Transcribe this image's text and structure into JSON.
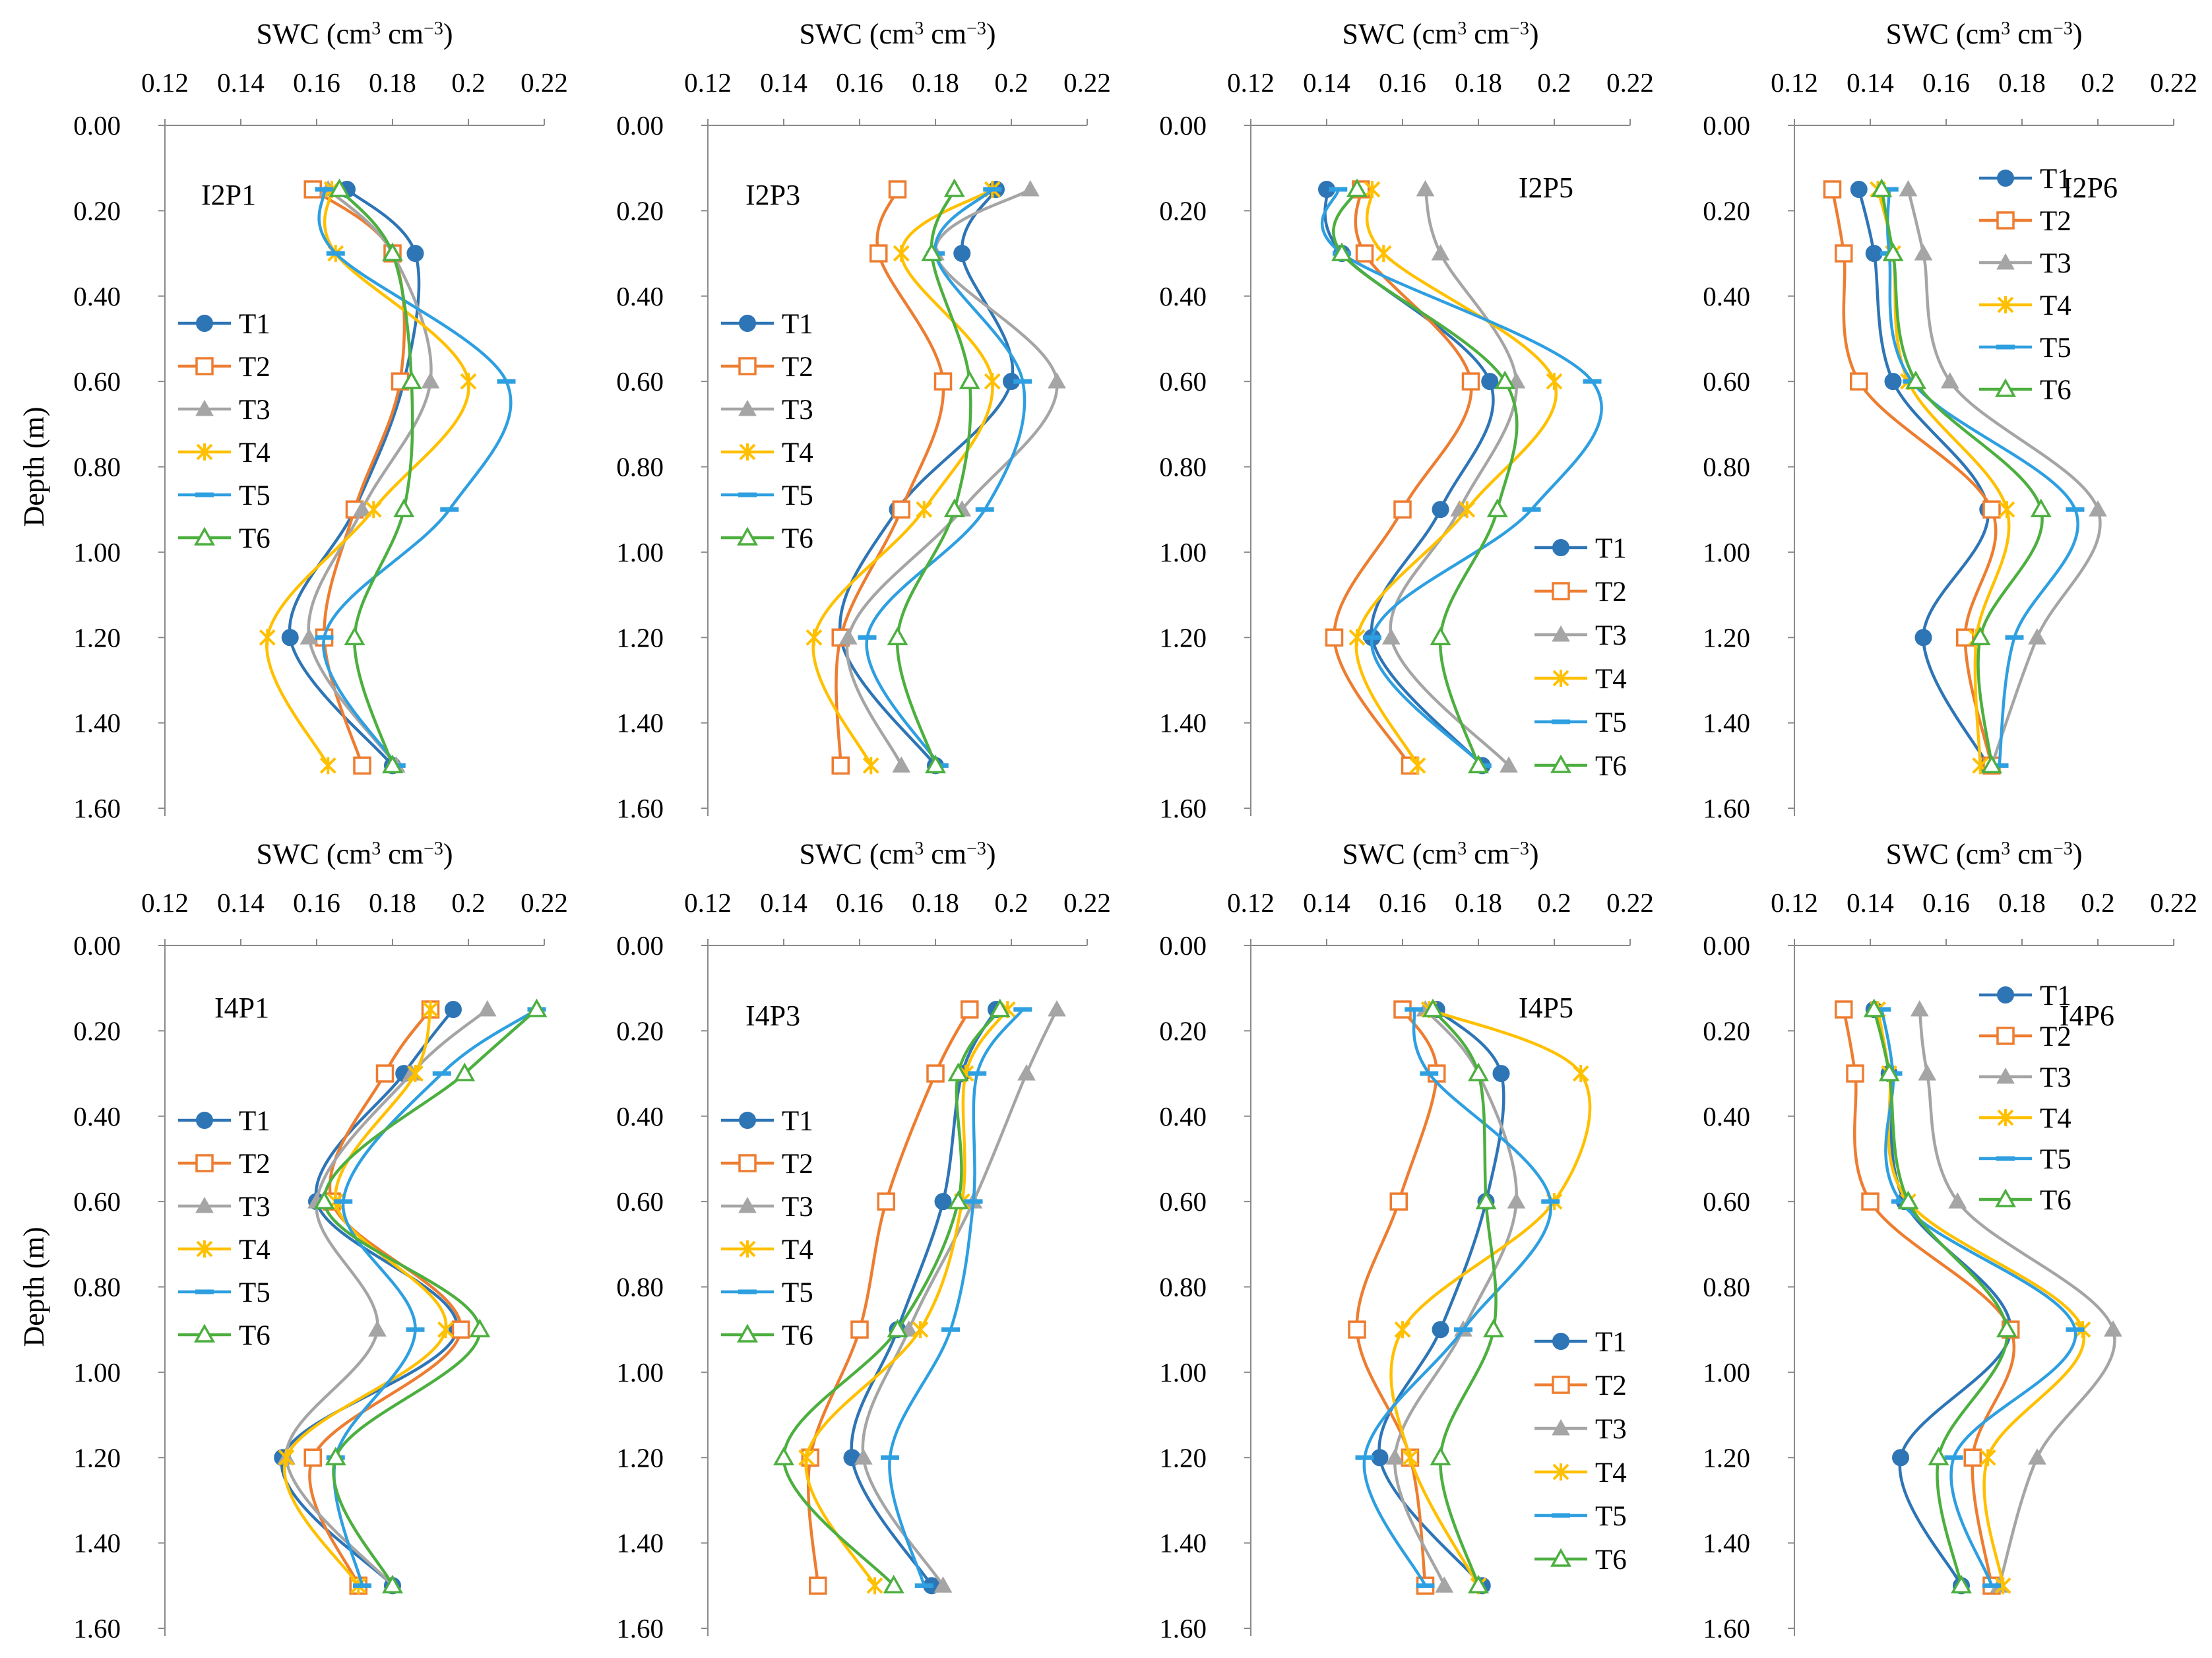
{
  "figure": {
    "x_axis_title": "SWC (cm",
    "x_axis_title_sup": "3",
    "x_axis_title_mid": " cm",
    "x_axis_title_sup2": "−3",
    "x_axis_title_end": ")",
    "y_axis_title": "Depth (m)"
  },
  "series_styles": [
    {
      "name": "T1",
      "color": "#2E75B6",
      "marker": "circle"
    },
    {
      "name": "T2",
      "color": "#ED7D31",
      "marker": "square"
    },
    {
      "name": "T3",
      "color": "#A5A5A5",
      "marker": "triangle"
    },
    {
      "name": "T4",
      "color": "#FFC000",
      "marker": "star"
    },
    {
      "name": "T5",
      "color": "#2E9FE0",
      "marker": "dash"
    },
    {
      "name": "T6",
      "color": "#4CAF3F",
      "marker": "triangle-open"
    }
  ],
  "chart_data": [
    {
      "type": "line",
      "title": "I2P1",
      "xlabel": "SWC (cm3 cm-3)",
      "ylabel": "Depth (m)",
      "xlim": [
        0.12,
        0.22
      ],
      "ylim": [
        0.0,
        1.6
      ],
      "x_ticks": [
        "0.12",
        "0.14",
        "0.16",
        "0.18",
        "0.2",
        "0.22"
      ],
      "y_ticks": [
        "0.00",
        "0.20",
        "0.40",
        "0.60",
        "0.80",
        "1.00",
        "1.20",
        "1.40",
        "1.60"
      ],
      "legend": "left",
      "depths": [
        0.15,
        0.3,
        0.6,
        0.9,
        1.2,
        1.5
      ],
      "series": [
        {
          "name": "T1",
          "values": [
            0.168,
            0.186,
            0.183,
            0.17,
            0.153,
            0.18
          ]
        },
        {
          "name": "T2",
          "values": [
            0.159,
            0.18,
            0.182,
            0.17,
            0.162,
            0.172
          ]
        },
        {
          "name": "T3",
          "values": [
            0.163,
            0.18,
            0.19,
            0.172,
            0.158,
            0.181
          ]
        },
        {
          "name": "T4",
          "values": [
            0.164,
            0.165,
            0.2,
            0.175,
            0.147,
            0.163
          ]
        },
        {
          "name": "T5",
          "values": [
            0.162,
            0.165,
            0.21,
            0.195,
            0.162,
            0.181
          ]
        },
        {
          "name": "T6",
          "values": [
            0.166,
            0.18,
            0.185,
            0.183,
            0.17,
            0.18
          ]
        }
      ]
    },
    {
      "type": "line",
      "title": "I2P3",
      "xlabel": "SWC (cm3 cm-3)",
      "ylabel": "Depth (m)",
      "xlim": [
        0.12,
        0.22
      ],
      "ylim": [
        0.0,
        1.6
      ],
      "x_ticks": [
        "0.12",
        "0.14",
        "0.16",
        "0.18",
        "0.2",
        "0.22"
      ],
      "y_ticks": [
        "0.00",
        "0.20",
        "0.40",
        "0.60",
        "0.80",
        "1.00",
        "1.20",
        "1.40",
        "1.60"
      ],
      "legend": "left",
      "depths": [
        0.15,
        0.3,
        0.6,
        0.9,
        1.2,
        1.5
      ],
      "series": [
        {
          "name": "T1",
          "values": [
            0.196,
            0.187,
            0.2,
            0.17,
            0.155,
            0.18
          ]
        },
        {
          "name": "T2",
          "values": [
            0.17,
            0.165,
            0.182,
            0.171,
            0.155,
            0.155
          ]
        },
        {
          "name": "T3",
          "values": [
            0.205,
            0.18,
            0.212,
            0.187,
            0.157,
            0.171
          ]
        },
        {
          "name": "T4",
          "values": [
            0.195,
            0.171,
            0.195,
            0.177,
            0.148,
            0.163
          ]
        },
        {
          "name": "T5",
          "values": [
            0.195,
            0.18,
            0.203,
            0.193,
            0.162,
            0.181
          ]
        },
        {
          "name": "T6",
          "values": [
            0.185,
            0.179,
            0.189,
            0.185,
            0.17,
            0.18
          ]
        }
      ]
    },
    {
      "type": "line",
      "title": "I2P5",
      "xlabel": "SWC (cm3 cm-3)",
      "ylabel": "Depth (m)",
      "xlim": [
        0.12,
        0.22
      ],
      "ylim": [
        0.0,
        1.6
      ],
      "x_ticks": [
        "0.12",
        "0.14",
        "0.16",
        "0.18",
        "0.2",
        "0.22"
      ],
      "y_ticks": [
        "0.00",
        "0.20",
        "0.40",
        "0.60",
        "0.80",
        "1.00",
        "1.20",
        "1.40",
        "1.60"
      ],
      "legend": "bottom-right",
      "depths": [
        0.15,
        0.3,
        0.6,
        0.9,
        1.2,
        1.5
      ],
      "series": [
        {
          "name": "T1",
          "values": [
            0.14,
            0.144,
            0.183,
            0.17,
            0.152,
            0.181
          ]
        },
        {
          "name": "T2",
          "values": [
            0.149,
            0.15,
            0.178,
            0.16,
            0.142,
            0.162
          ]
        },
        {
          "name": "T3",
          "values": [
            0.166,
            0.17,
            0.19,
            0.175,
            0.157,
            0.188
          ]
        },
        {
          "name": "T4",
          "values": [
            0.152,
            0.155,
            0.2,
            0.177,
            0.148,
            0.164
          ]
        },
        {
          "name": "T5",
          "values": [
            0.143,
            0.144,
            0.21,
            0.194,
            0.152,
            0.181
          ]
        },
        {
          "name": "T6",
          "values": [
            0.148,
            0.144,
            0.187,
            0.185,
            0.17,
            0.18
          ]
        }
      ]
    },
    {
      "type": "line",
      "title": "I2P6",
      "xlabel": "SWC (cm3 cm-3)",
      "ylabel": "Depth (m)",
      "xlim": [
        0.12,
        0.22
      ],
      "ylim": [
        0.0,
        1.6
      ],
      "x_ticks": [
        "0.12",
        "0.14",
        "0.16",
        "0.18",
        "0.2",
        "0.22"
      ],
      "y_ticks": [
        "0.00",
        "0.20",
        "0.40",
        "0.60",
        "0.80",
        "1.00",
        "1.20",
        "1.40",
        "1.60"
      ],
      "legend": "top-right",
      "depths": [
        0.15,
        0.3,
        0.6,
        0.9,
        1.2,
        1.5
      ],
      "series": [
        {
          "name": "T1",
          "values": [
            0.137,
            0.141,
            0.146,
            0.171,
            0.154,
            0.171
          ]
        },
        {
          "name": "T2",
          "values": [
            0.13,
            0.133,
            0.137,
            0.172,
            0.165,
            0.172
          ]
        },
        {
          "name": "T3",
          "values": [
            0.15,
            0.154,
            0.161,
            0.2,
            0.184,
            0.172
          ]
        },
        {
          "name": "T4",
          "values": [
            0.142,
            0.146,
            0.15,
            0.176,
            0.168,
            0.169
          ]
        },
        {
          "name": "T5",
          "values": [
            0.145,
            0.145,
            0.151,
            0.194,
            0.178,
            0.174
          ]
        },
        {
          "name": "T6",
          "values": [
            0.143,
            0.146,
            0.152,
            0.185,
            0.169,
            0.172
          ]
        }
      ]
    },
    {
      "type": "line",
      "title": "I4P1",
      "xlabel": "SWC (cm3 cm-3)",
      "ylabel": "Depth (m)",
      "xlim": [
        0.12,
        0.22
      ],
      "ylim": [
        0.0,
        1.6
      ],
      "x_ticks": [
        "0.12",
        "0.14",
        "0.16",
        "0.18",
        "0.2",
        "0.22"
      ],
      "y_ticks": [
        "0.00",
        "0.20",
        "0.40",
        "0.60",
        "0.80",
        "1.00",
        "1.20",
        "1.40",
        "1.60"
      ],
      "legend": "left",
      "depths": [
        0.15,
        0.3,
        0.6,
        0.9,
        1.2,
        1.5
      ],
      "series": [
        {
          "name": "T1",
          "values": [
            0.196,
            0.183,
            0.16,
            0.197,
            0.151,
            0.18
          ]
        },
        {
          "name": "T2",
          "values": [
            0.19,
            0.178,
            0.164,
            0.198,
            0.159,
            0.171
          ]
        },
        {
          "name": "T3",
          "values": [
            0.205,
            0.185,
            0.16,
            0.176,
            0.152,
            0.18
          ]
        },
        {
          "name": "T4",
          "values": [
            0.19,
            0.186,
            0.165,
            0.194,
            0.152,
            0.171
          ]
        },
        {
          "name": "T5",
          "values": [
            0.218,
            0.193,
            0.167,
            0.186,
            0.165,
            0.172
          ]
        },
        {
          "name": "T6",
          "values": [
            0.218,
            0.199,
            0.162,
            0.203,
            0.165,
            0.18
          ]
        }
      ]
    },
    {
      "type": "line",
      "title": "I4P3",
      "xlabel": "SWC (cm3 cm-3)",
      "ylabel": "Depth (m)",
      "xlim": [
        0.12,
        0.22
      ],
      "ylim": [
        0.0,
        1.6
      ],
      "x_ticks": [
        "0.12",
        "0.14",
        "0.16",
        "0.18",
        "0.2",
        "0.22"
      ],
      "y_ticks": [
        "0.00",
        "0.20",
        "0.40",
        "0.60",
        "0.80",
        "1.00",
        "1.20",
        "1.40",
        "1.60"
      ],
      "legend": "left",
      "depths": [
        0.15,
        0.3,
        0.6,
        0.9,
        1.2,
        1.5
      ],
      "series": [
        {
          "name": "T1",
          "values": [
            0.196,
            0.187,
            0.182,
            0.17,
            0.158,
            0.179
          ]
        },
        {
          "name": "T2",
          "values": [
            0.189,
            0.18,
            0.167,
            0.16,
            0.147,
            0.149
          ]
        },
        {
          "name": "T3",
          "values": [
            0.212,
            0.204,
            0.19,
            0.173,
            0.161,
            0.182
          ]
        },
        {
          "name": "T4",
          "values": [
            0.199,
            0.188,
            0.187,
            0.176,
            0.146,
            0.164
          ]
        },
        {
          "name": "T5",
          "values": [
            0.203,
            0.191,
            0.19,
            0.184,
            0.168,
            0.177
          ]
        },
        {
          "name": "T6",
          "values": [
            0.197,
            0.186,
            0.186,
            0.17,
            0.14,
            0.169
          ]
        }
      ]
    },
    {
      "type": "line",
      "title": "I4P5",
      "xlabel": "SWC (cm3 cm-3)",
      "ylabel": "Depth (m)",
      "xlim": [
        0.12,
        0.22
      ],
      "ylim": [
        0.0,
        1.6
      ],
      "x_ticks": [
        "0.12",
        "0.14",
        "0.16",
        "0.18",
        "0.2",
        "0.22"
      ],
      "y_ticks": [
        "0.00",
        "0.20",
        "0.40",
        "0.60",
        "0.80",
        "1.00",
        "1.20",
        "1.40",
        "1.60"
      ],
      "legend": "bottom-right",
      "depths": [
        0.15,
        0.3,
        0.6,
        0.9,
        1.2,
        1.5
      ],
      "series": [
        {
          "name": "T1",
          "values": [
            0.169,
            0.186,
            0.182,
            0.17,
            0.154,
            0.181
          ]
        },
        {
          "name": "T2",
          "values": [
            0.16,
            0.169,
            0.159,
            0.148,
            0.162,
            0.166
          ]
        },
        {
          "name": "T3",
          "values": [
            0.166,
            0.18,
            0.19,
            0.176,
            0.158,
            0.171
          ]
        },
        {
          "name": "T4",
          "values": [
            0.167,
            0.207,
            0.2,
            0.16,
            0.162,
            0.18
          ]
        },
        {
          "name": "T5",
          "values": [
            0.163,
            0.167,
            0.199,
            0.176,
            0.15,
            0.166
          ]
        },
        {
          "name": "T6",
          "values": [
            0.168,
            0.18,
            0.182,
            0.184,
            0.17,
            0.18
          ]
        }
      ]
    },
    {
      "type": "line",
      "title": "I4P6",
      "xlabel": "SWC (cm3 cm-3)",
      "ylabel": "Depth (m)",
      "xlim": [
        0.12,
        0.22
      ],
      "ylim": [
        0.0,
        1.6
      ],
      "x_ticks": [
        "0.12",
        "0.14",
        "0.16",
        "0.18",
        "0.2",
        "0.22"
      ],
      "y_ticks": [
        "0.00",
        "0.20",
        "0.40",
        "0.60",
        "0.80",
        "1.00",
        "1.20",
        "1.40",
        "1.60"
      ],
      "legend": "top-right",
      "depths": [
        0.15,
        0.3,
        0.6,
        0.9,
        1.2,
        1.5
      ],
      "series": [
        {
          "name": "T1",
          "values": [
            0.141,
            0.145,
            0.149,
            0.177,
            0.148,
            0.164
          ]
        },
        {
          "name": "T2",
          "values": [
            0.133,
            0.136,
            0.14,
            0.177,
            0.167,
            0.172
          ]
        },
        {
          "name": "T3",
          "values": [
            0.153,
            0.155,
            0.163,
            0.204,
            0.184,
            0.174
          ]
        },
        {
          "name": "T4",
          "values": [
            0.142,
            0.145,
            0.15,
            0.196,
            0.171,
            0.175
          ]
        },
        {
          "name": "T5",
          "values": [
            0.143,
            0.146,
            0.148,
            0.194,
            0.162,
            0.172
          ]
        },
        {
          "name": "T6",
          "values": [
            0.141,
            0.145,
            0.15,
            0.176,
            0.158,
            0.164
          ]
        }
      ]
    }
  ]
}
